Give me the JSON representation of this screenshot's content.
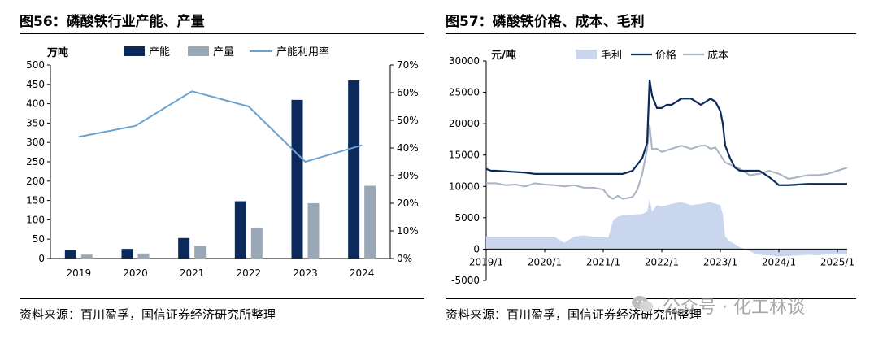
{
  "left": {
    "title": "图56：磷酸铁行业产能、产量",
    "source": "资料来源：百川盈孚，国信证券经济研究所整理"
  },
  "right": {
    "title": "图57：磷酸铁价格、成本、毛利",
    "source": "资料来源：百川盈孚，国信证券经济研究所整理"
  },
  "watermark": "公众号 · 化工林谈",
  "colors": {
    "capacity": "#0b2a5b",
    "production": "#9aa7b6",
    "utilization": "#6aa3d1",
    "price": "#0b2a5b",
    "cost": "#a9b4c2",
    "margin": "#c9d6ee"
  },
  "chart_data": [
    {
      "type": "bar",
      "unit_label": "万吨",
      "categories": [
        "2019",
        "2020",
        "2021",
        "2022",
        "2023",
        "2024"
      ],
      "series": [
        {
          "name": "产能",
          "type": "bar",
          "axis": "left",
          "values": [
            22,
            25,
            53,
            148,
            410,
            460
          ]
        },
        {
          "name": "产量",
          "type": "bar",
          "axis": "left",
          "values": [
            10,
            13,
            33,
            80,
            143,
            188
          ]
        },
        {
          "name": "产能利用率",
          "type": "line",
          "axis": "right",
          "values": [
            44,
            48,
            60.5,
            55,
            35,
            41
          ]
        }
      ],
      "ylim": [
        0,
        500
      ],
      "yticks": [
        0,
        50,
        100,
        150,
        200,
        250,
        300,
        350,
        400,
        450,
        500
      ],
      "y2lim": [
        0,
        70
      ],
      "y2ticks": [
        "0%",
        "10%",
        "20%",
        "30%",
        "40%",
        "50%",
        "60%",
        "70%"
      ],
      "y2tick_values": [
        0,
        10,
        20,
        30,
        40,
        50,
        60,
        70
      ],
      "legend": "top",
      "grid": false
    },
    {
      "type": "line",
      "unit_label": "元/吨",
      "xticks": [
        "2019/1",
        "2020/1",
        "2021/1",
        "2022/1",
        "2023/1",
        "2024/1",
        "2025/1"
      ],
      "xtick_values": [
        0,
        12,
        24,
        36,
        48,
        60,
        72
      ],
      "xlim": [
        0,
        74
      ],
      "ylim": [
        -5000,
        30000
      ],
      "yticks": [
        -5000,
        0,
        5000,
        10000,
        15000,
        20000,
        25000,
        30000
      ],
      "legend": "top",
      "grid": false,
      "series": [
        {
          "name": "毛利",
          "type": "area",
          "x": [
            0,
            12,
            14,
            16,
            18,
            20,
            22,
            23,
            24,
            25,
            26,
            27,
            28,
            30,
            32,
            33,
            33.5,
            34,
            35,
            36,
            38,
            40,
            42,
            44,
            46,
            48,
            48.5,
            49,
            50,
            51,
            52,
            53,
            54,
            55,
            56,
            58,
            60,
            62,
            64,
            66,
            68,
            70,
            72,
            74
          ],
          "y": [
            2000,
            2000,
            2000,
            1000,
            2000,
            2200,
            2000,
            2000,
            2000,
            1800,
            4500,
            5200,
            5400,
            5500,
            5600,
            6000,
            8000,
            6000,
            7000,
            6800,
            7200,
            7500,
            7000,
            7200,
            7500,
            7000,
            5500,
            2000,
            1200,
            800,
            300,
            0,
            -300,
            -700,
            -900,
            -1000,
            -1200,
            -1100,
            -1000,
            -900,
            -1000,
            -800,
            -800,
            -800
          ]
        },
        {
          "name": "价格",
          "type": "line",
          "x": [
            0,
            1,
            2,
            4,
            6,
            8,
            10,
            12,
            14,
            16,
            18,
            20,
            22,
            24,
            26,
            28,
            30,
            31,
            32,
            33,
            33.5,
            34,
            35,
            36,
            37,
            38,
            39,
            40,
            42,
            44,
            45,
            46,
            47,
            48,
            48.5,
            49,
            50,
            51,
            52,
            53,
            54,
            55,
            56,
            57,
            58,
            60,
            62,
            64,
            66,
            68,
            70,
            72,
            74
          ],
          "y": [
            12800,
            12500,
            12500,
            12400,
            12300,
            12200,
            12000,
            12000,
            12000,
            12000,
            12000,
            12000,
            12000,
            12000,
            12000,
            12000,
            12500,
            13500,
            14500,
            17000,
            27000,
            24500,
            22500,
            22500,
            23000,
            23000,
            23500,
            24000,
            24000,
            23000,
            23500,
            24000,
            23500,
            22000,
            20000,
            16500,
            14500,
            13000,
            12500,
            12500,
            12500,
            12500,
            12500,
            12000,
            11500,
            10200,
            10200,
            10300,
            10400,
            10400,
            10400,
            10400,
            10400
          ]
        },
        {
          "name": "成本",
          "type": "line",
          "x": [
            0,
            2,
            4,
            6,
            8,
            10,
            12,
            14,
            16,
            18,
            20,
            22,
            24,
            25,
            26,
            27,
            28,
            30,
            31,
            32,
            33,
            33.5,
            34,
            35,
            36,
            38,
            40,
            42,
            44,
            45,
            46,
            47,
            48,
            49,
            50,
            52,
            54,
            56,
            58,
            60,
            62,
            64,
            66,
            68,
            70,
            72,
            74
          ],
          "y": [
            10500,
            10500,
            10200,
            10300,
            10000,
            10500,
            10300,
            10200,
            10000,
            10200,
            9800,
            9800,
            9500,
            8500,
            8000,
            8500,
            8000,
            8300,
            9500,
            12000,
            16000,
            19800,
            16000,
            16000,
            15500,
            16000,
            16500,
            16000,
            16500,
            16500,
            16000,
            16200,
            15000,
            13800,
            13500,
            12800,
            11800,
            12000,
            12500,
            12000,
            11200,
            11500,
            11800,
            11800,
            12000,
            12500,
            13000
          ]
        }
      ]
    }
  ]
}
